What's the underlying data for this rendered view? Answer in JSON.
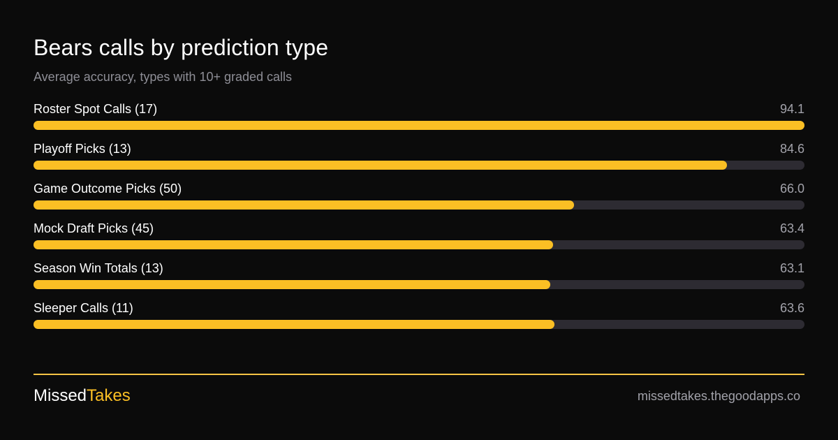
{
  "header": {
    "title": "Bears calls by prediction  type",
    "subtitle": "Average  accuracy,  types with 10+ graded calls"
  },
  "chart_data": {
    "type": "bar",
    "orientation": "horizontal",
    "title": "Bears calls by prediction  type",
    "subtitle": "Average  accuracy,  types with 10+ graded calls",
    "categories": [
      "Roster Spot Calls (17)",
      "Playoff  Picks (13)",
      "Game Outcome Picks (50)",
      "Mock Draft Picks (45)",
      "Season Win Totals  (13)",
      "Sleeper Calls (11)"
    ],
    "values": [
      94.1,
      84.6,
      66.0,
      63.4,
      63.1,
      63.6
    ],
    "value_labels": [
      "94.1",
      "84.6",
      "66.0",
      "63.4",
      "63.1",
      "63.6"
    ],
    "xlim": [
      0,
      94.1
    ],
    "grid": false,
    "legend": "none",
    "colors": {
      "bar": "#fbbf24",
      "track": "#2d2b32"
    }
  },
  "footer": {
    "brand_main": "Missed",
    "brand_accent": "Takes",
    "site": "missedtakes.thegoodapps.co"
  },
  "colors": {
    "background": "#0b0b0b",
    "accent": "#fbbf24",
    "divider": "#f5c445"
  }
}
